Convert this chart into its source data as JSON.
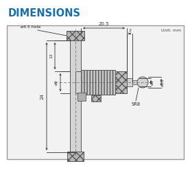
{
  "title": "DIMENSIONS",
  "title_color": "#1a6fa8",
  "unit_text": "Unit: mm",
  "annotations": {
    "hole": "ø4.5 hole",
    "dim_12": "12",
    "dim_9": "ø9",
    "dim_24": "24",
    "dim_205": "20.5",
    "dim_2": "2",
    "dim_8": "ø8",
    "dim_16": "ø16",
    "sr8": "SR8"
  },
  "colors": {
    "body_fill": "#d4d4d4",
    "body_edge": "#555555",
    "knurl_fill": "#b8b8b8",
    "knurl_edge": "#555555",
    "dim_line": "#333333",
    "border_fill": "#f2f2f2",
    "border_edge": "#999999",
    "centerline": "#666666",
    "thimble_fill": "#c8c8c8"
  }
}
